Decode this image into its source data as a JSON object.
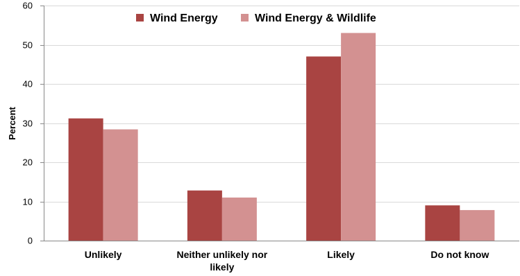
{
  "chart_data": {
    "type": "bar",
    "categories": [
      "Unlikely",
      "Neither unlikely nor likely",
      "Likely",
      "Do not know"
    ],
    "series": [
      {
        "name": "Wind Energy",
        "color": "#a94442",
        "values": [
          31.2,
          12.8,
          47,
          9
        ]
      },
      {
        "name": "Wind Energy & Wildlife",
        "color": "#d39191",
        "values": [
          28.4,
          11,
          53,
          7.8
        ]
      }
    ],
    "ylabel": "Percent",
    "xlabel": "",
    "ylim": [
      0,
      60
    ],
    "yticks": [
      0,
      10,
      20,
      30,
      40,
      50,
      60
    ],
    "grid": true,
    "legend_position": "top"
  }
}
